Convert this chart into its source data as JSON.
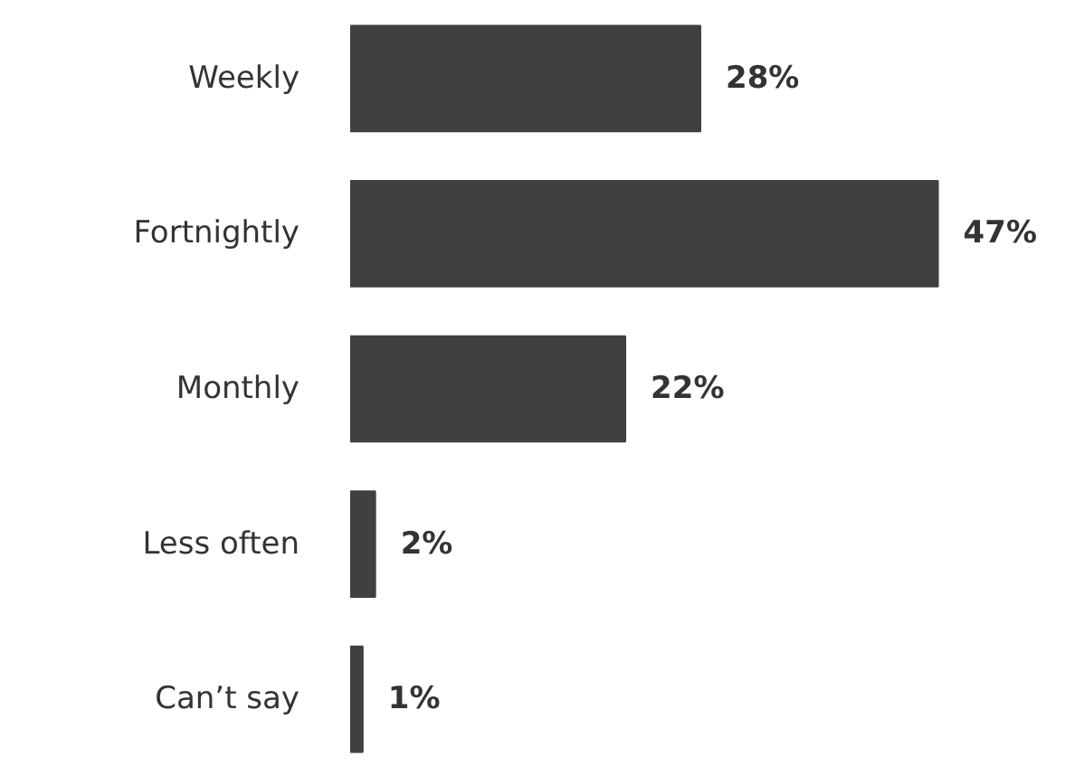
{
  "chart_data": {
    "type": "bar",
    "orientation": "horizontal",
    "categories": [
      "Weekly",
      "Fortnightly",
      "Monthly",
      "Less often",
      "Can’t say"
    ],
    "values": [
      28,
      47,
      22,
      2,
      1
    ],
    "value_labels": [
      "28%",
      "47%",
      "22%",
      "2%",
      "1%"
    ],
    "color": "#404040"
  }
}
